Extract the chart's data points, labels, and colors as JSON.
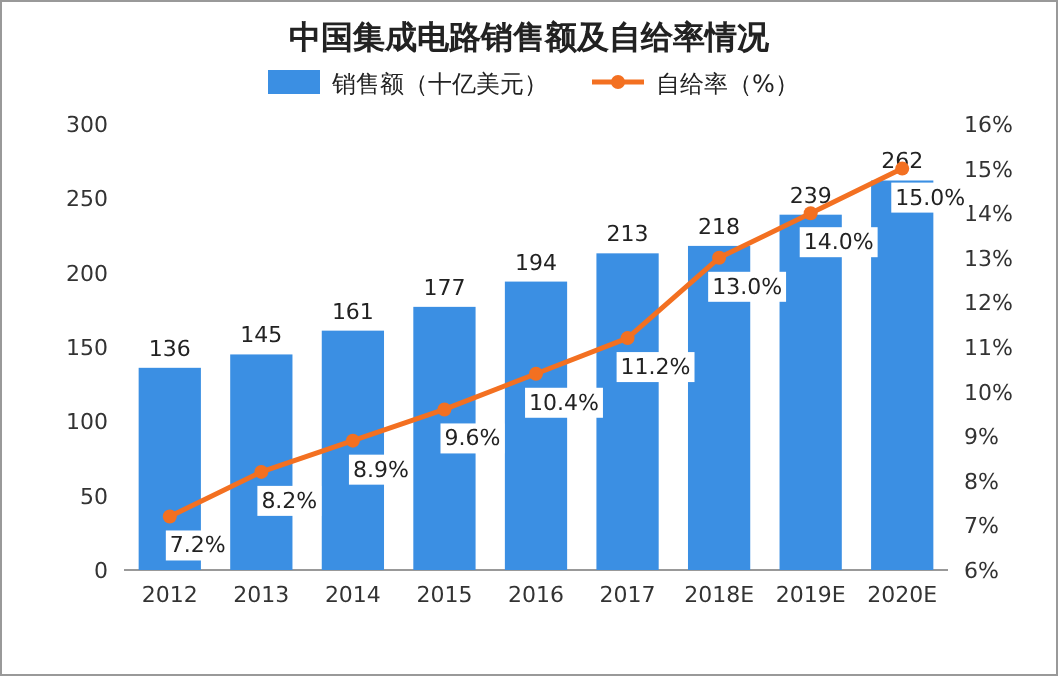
{
  "chart_data": {
    "type": "bar",
    "title": "中国集成电路销售额及自给率情况",
    "categories": [
      "2012",
      "2013",
      "2014",
      "2015",
      "2016",
      "2017",
      "2018E",
      "2019E",
      "2020E"
    ],
    "series": [
      {
        "name": "销售额（十亿美元）",
        "color": "#3b8fe3",
        "values": [
          136,
          145,
          161,
          177,
          194,
          213,
          218,
          239,
          262
        ],
        "value_labels": [
          "136",
          "145",
          "161",
          "177",
          "194",
          "213",
          "218",
          "239",
          "262"
        ]
      },
      {
        "name": "自给率（%）",
        "type": "line",
        "axis": "y2",
        "color": "#f37021",
        "marker": "circle",
        "values": [
          7.2,
          8.2,
          8.9,
          9.6,
          10.4,
          11.2,
          13.0,
          14.0,
          15.0
        ],
        "value_labels": [
          "7.2%",
          "8.2%",
          "8.9%",
          "9.6%",
          "10.4%",
          "11.2%",
          "13.0%",
          "14.0%",
          "15.0%"
        ]
      }
    ],
    "ylim": [
      0,
      300
    ],
    "yticks": [
      0,
      50,
      100,
      150,
      200,
      250,
      300
    ],
    "y2lim": [
      6,
      16
    ],
    "y2ticks": [
      {
        "value": 6,
        "label": "6%"
      },
      {
        "value": 7,
        "label": "7%"
      },
      {
        "value": 8,
        "label": "8%"
      },
      {
        "value": 9,
        "label": "9%"
      },
      {
        "value": 10,
        "label": "10%"
      },
      {
        "value": 11,
        "label": "11%"
      },
      {
        "value": 12,
        "label": "12%"
      },
      {
        "value": 13,
        "label": "13%"
      },
      {
        "value": 14,
        "label": "14%"
      },
      {
        "value": 15,
        "label": "15%"
      },
      {
        "value": 16,
        "label": "16%"
      }
    ],
    "legend": "top"
  }
}
